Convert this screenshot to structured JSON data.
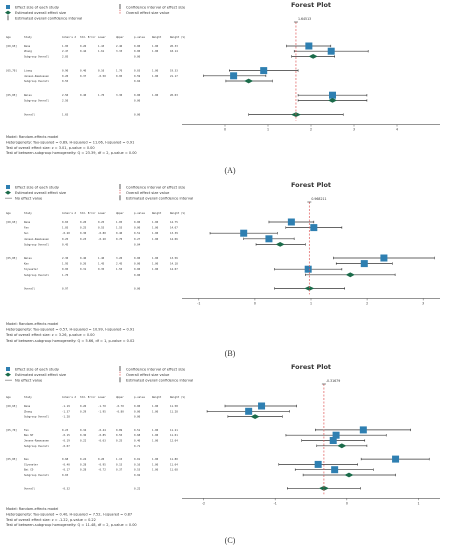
{
  "colors": {
    "box": "#2e7fb1",
    "diamond": "#1b6b4a",
    "ci": "#333333",
    "ref": "#e05a5a",
    "axis": "#555555",
    "text": "#333333"
  },
  "chart_data": [
    {
      "type": "forest",
      "panel_label": "(A)",
      "title": "Forest Plot",
      "ref_value": "1.64513",
      "legend": {
        "effect": "Effect size of each study",
        "overall": "Estimated overall effect size",
        "ci_overall": "Estimated overall confidence interval",
        "ci": "Confidence interval of effect size",
        "overall_value": "Overall effect size value"
      },
      "columns": [
        "Age",
        "Study",
        "Cohen's d",
        "Std. Error",
        "Lower",
        "Upper",
        "p-value",
        "Weight",
        "Weight (%)"
      ],
      "xlim": [
        -1,
        5
      ],
      "ticks": [
        "0",
        "1",
        "2",
        "3",
        "4"
      ],
      "tick_values": [
        0,
        1,
        2,
        3,
        4
      ],
      "rows": [
        {
          "group": "[60,65]",
          "study": "Rana",
          "type": "study",
          "es": 1.95,
          "lo": 1.43,
          "hi": 2.46,
          "cols": [
            "1.95",
            "0.26",
            "1.43",
            "2.46",
            "0.00",
            "1.00",
            "20.33"
          ]
        },
        {
          "group": "",
          "study": "Zhang",
          "type": "study",
          "es": 2.47,
          "lo": 1.61,
          "hi": 3.33,
          "cols": [
            "2.47",
            "0.44",
            "1.61",
            "3.33",
            "0.00",
            "1.00",
            "18.14"
          ]
        },
        {
          "group": "",
          "study": "Subgroup Overall",
          "type": "sub",
          "es": 2.05,
          "lo": 1.55,
          "hi": 2.55,
          "cols": [
            "2.05",
            "",
            "",
            "",
            "0.00",
            "",
            ""
          ]
        },
        {
          "gap": true
        },
        {
          "group": "[65,70]",
          "study": "Liang",
          "type": "study",
          "es": 0.9,
          "lo": 0.1,
          "hi": 1.7,
          "cols": [
            "0.90",
            "0.40",
            "0.10",
            "1.70",
            "0.03",
            "1.00",
            "19.33"
          ]
        },
        {
          "group": "",
          "study": "Jensen-Rasmussen",
          "type": "study",
          "es": 0.2,
          "lo": -0.5,
          "hi": 0.95,
          "cols": [
            "0.20",
            "0.37",
            "-0.50",
            "0.95",
            "0.59",
            "1.00",
            "21.17"
          ]
        },
        {
          "group": "",
          "study": "Subgroup Overall",
          "type": "sub",
          "es": 0.55,
          "lo": 0.02,
          "hi": 1.1,
          "cols": [
            "0.55",
            "",
            "",
            "",
            "0.04",
            "",
            ""
          ]
        },
        {
          "gap": true
        },
        {
          "group": "[65,85]",
          "study": "Weiss",
          "type": "study",
          "es": 2.5,
          "lo": 1.7,
          "hi": 3.3,
          "cols": [
            "2.50",
            "0.40",
            "1.70",
            "3.30",
            "0.00",
            "1.00",
            "20.03"
          ]
        },
        {
          "group": "",
          "study": "Subgroup Overall",
          "type": "sub",
          "es": 2.5,
          "lo": 1.7,
          "hi": 3.3,
          "cols": [
            "2.50",
            "",
            "",
            "",
            "0.00",
            "",
            ""
          ]
        },
        {
          "gap": true
        },
        {
          "group": "",
          "study": "Overall",
          "type": "overall",
          "es": 1.65,
          "lo": 0.55,
          "hi": 2.75,
          "cols": [
            "1.65",
            "",
            "",
            "",
            "0.00",
            "",
            ""
          ]
        }
      ],
      "footer": [
        "Model: Random-effects model",
        "Heterogeneity: Tau-squared = 0.89, H-squared = 11.06, I-squared = 0.91",
        "Test of overall effect size: z = 3.01, p-value = 0.00",
        "Test of between-subgroup homogeneity: Q = 23.39, df = 2, p-value = 0.00"
      ]
    },
    {
      "type": "forest",
      "panel_label": "(B)",
      "title": "Forest Plot",
      "ref_value": "0.968211",
      "legend": {
        "effect": "Effect size of each study",
        "overall": "Estimated overall effect size",
        "ci_overall": "Estimated overall confidence interval",
        "ci": "Confidence interval of effect size",
        "overall_value": "Overall effect size value",
        "noeffect": "No effect value"
      },
      "columns": [
        "Age",
        "Study",
        "Cohen's d",
        "Std. Error",
        "Lower",
        "Upper",
        "p-value",
        "Weight",
        "Weight (%)"
      ],
      "xlim": [
        -1.3,
        3.3
      ],
      "ticks": [
        "-1",
        "0",
        "1",
        "2",
        "3"
      ],
      "tick_values": [
        -1,
        0,
        1,
        2,
        3
      ],
      "rows": [
        {
          "group": "[60,65]",
          "study": "Rana",
          "type": "study",
          "es": 0.65,
          "lo": 0.25,
          "hi": 1.05,
          "cols": [
            "0.65",
            "0.20",
            "0.25",
            "1.05",
            "0.00",
            "1.00",
            "14.75"
          ]
        },
        {
          "group": "",
          "study": "Fan",
          "type": "study",
          "es": 1.05,
          "lo": 0.55,
          "hi": 1.55,
          "cols": [
            "1.05",
            "0.25",
            "0.55",
            "1.55",
            "0.00",
            "1.00",
            "14.07"
          ]
        },
        {
          "group": "",
          "study": "Sui",
          "type": "study",
          "es": -0.2,
          "lo": -0.8,
          "hi": 0.4,
          "cols": [
            "-0.20",
            "0.30",
            "-0.80",
            "0.40",
            "0.51",
            "1.00",
            "13.39"
          ]
        },
        {
          "group": "",
          "study": "Jensen-Rasmussen",
          "type": "study",
          "es": 0.25,
          "lo": -0.2,
          "hi": 0.7,
          "cols": [
            "0.25",
            "0.23",
            "-0.20",
            "0.70",
            "0.27",
            "1.00",
            "14.06"
          ]
        },
        {
          "group": "",
          "study": "Subgroup Overall",
          "type": "sub",
          "es": 0.45,
          "lo": 0.02,
          "hi": 0.9,
          "cols": [
            "0.45",
            "",
            "",
            "",
            "0.04",
            "",
            ""
          ]
        },
        {
          "gap": true
        },
        {
          "group": "[65,85]",
          "study": "Weiss",
          "type": "study",
          "es": 2.3,
          "lo": 1.4,
          "hi": 3.2,
          "cols": [
            "2.30",
            "0.46",
            "1.40",
            "3.20",
            "0.00",
            "1.00",
            "13.56"
          ]
        },
        {
          "group": "",
          "study": "Kao",
          "type": "study",
          "es": 1.95,
          "lo": 1.45,
          "hi": 2.45,
          "cols": [
            "1.95",
            "0.26",
            "1.45",
            "2.45",
            "0.00",
            "1.00",
            "14.18"
          ]
        },
        {
          "group": "",
          "study": "Slyvester",
          "type": "study",
          "es": 0.95,
          "lo": 0.35,
          "hi": 1.55,
          "cols": [
            "0.95",
            "0.31",
            "0.35",
            "1.55",
            "0.00",
            "1.00",
            "14.07"
          ]
        },
        {
          "group": "",
          "study": "Subgroup Overall",
          "type": "sub",
          "es": 1.7,
          "lo": 0.9,
          "hi": 2.5,
          "cols": [
            "1.70",
            "",
            "",
            "",
            "0.00",
            "",
            ""
          ]
        },
        {
          "gap": true
        },
        {
          "group": "",
          "study": "Overall",
          "type": "overall",
          "es": 0.97,
          "lo": 0.35,
          "hi": 1.6,
          "cols": [
            "0.97",
            "",
            "",
            "",
            "0.00",
            "",
            ""
          ]
        }
      ],
      "footer": [
        "Model: Random-effects model",
        "Heterogeneity: Tau-squared = 0.57, H-squared = 10.99, I-squared = 0.91",
        "Test of overall effect size: z = 3.26, p-value = 0.00",
        "Test of between-subgroup homogeneity: Q = 5.66, df = 1, p-value = 0.02"
      ]
    },
    {
      "type": "forest",
      "panel_label": "(C)",
      "title": "Forest Plot",
      "ref_value": "-0.31679",
      "legend": {
        "effect": "Effect size of each study",
        "overall": "Estimated overall effect size",
        "noeffect": "No effect value",
        "ci": "Confidence interval of effect size",
        "overall_value": "Overall effect size value",
        "ci_overall": "Estimated overall confidence interval"
      },
      "columns": [
        "Age",
        "Study",
        "Cohen's d",
        "Std. Error",
        "Lower",
        "Upper",
        "p-value",
        "Weight",
        "Weight (%)"
      ],
      "xlim": [
        -2.3,
        1.3
      ],
      "ticks": [
        "-2",
        "-1",
        "0",
        "1"
      ],
      "tick_values": [
        -2,
        -1,
        0,
        1
      ],
      "rows": [
        {
          "group": "[60,65]",
          "study": "Rana",
          "type": "study",
          "es": -1.19,
          "lo": -1.7,
          "hi": -0.7,
          "cols": [
            "-1.19",
            "0.26",
            "-1.70",
            "-0.70",
            "0.00",
            "1.00",
            "11.58"
          ]
        },
        {
          "group": "",
          "study": "Zhang",
          "type": "study",
          "es": -1.37,
          "lo": -1.95,
          "hi": -0.8,
          "cols": [
            "-1.37",
            "0.29",
            "-1.95",
            "-0.80",
            "0.00",
            "1.00",
            "11.28"
          ]
        },
        {
          "group": "",
          "study": "Subgroup Overall",
          "type": "sub",
          "es": -1.28,
          "lo": -1.66,
          "hi": -0.9,
          "cols": [
            "-1.28",
            "",
            "",
            "",
            "0.00",
            "",
            ""
          ]
        },
        {
          "gap": true
        },
        {
          "group": "[65,70]",
          "study": "Fan",
          "type": "study",
          "es": 0.23,
          "lo": -0.44,
          "hi": 0.89,
          "cols": [
            "0.23",
            "0.34",
            "-0.44",
            "0.89",
            "0.51",
            "1.00",
            "11.21"
          ]
        },
        {
          "group": "",
          "study": "Bao NT",
          "type": "study",
          "es": -0.15,
          "lo": -0.85,
          "hi": 0.55,
          "cols": [
            "-0.15",
            "0.36",
            "-0.85",
            "0.55",
            "0.68",
            "1.00",
            "11.01"
          ]
        },
        {
          "group": "",
          "study": "Jensen-Rasmussen",
          "type": "study",
          "es": -0.19,
          "lo": -0.63,
          "hi": 0.25,
          "cols": [
            "-0.19",
            "0.22",
            "-0.63",
            "0.25",
            "0.40",
            "1.00",
            "12.04"
          ]
        },
        {
          "group": "",
          "study": "Subgroup Overall",
          "type": "sub",
          "es": -0.07,
          "lo": -0.42,
          "hi": 0.28,
          "cols": [
            "-0.07",
            "",
            "",
            "",
            "0.71",
            "",
            ""
          ]
        },
        {
          "gap": true
        },
        {
          "group": "[65,85]",
          "study": "Kao",
          "type": "study",
          "es": 0.68,
          "lo": 0.2,
          "hi": 1.15,
          "cols": [
            "0.68",
            "0.24",
            "0.20",
            "1.15",
            "0.01",
            "1.00",
            "11.80"
          ]
        },
        {
          "group": "",
          "study": "Slyvester",
          "type": "study",
          "es": -0.4,
          "lo": -0.95,
          "hi": 0.15,
          "cols": [
            "-0.40",
            "0.28",
            "-0.95",
            "0.15",
            "0.16",
            "1.00",
            "11.64"
          ]
        },
        {
          "group": "",
          "study": "Bai CD",
          "type": "study",
          "es": -0.17,
          "lo": -0.72,
          "hi": 0.37,
          "cols": [
            "-0.17",
            "0.28",
            "-0.72",
            "0.37",
            "0.53",
            "1.00",
            "11.68"
          ]
        },
        {
          "group": "",
          "study": "Subgroup Overall",
          "type": "sub",
          "es": 0.03,
          "lo": -0.61,
          "hi": 0.68,
          "cols": [
            "0.03",
            "",
            "",
            "",
            "0.92",
            "",
            ""
          ]
        },
        {
          "gap": true
        },
        {
          "group": "",
          "study": "Overall",
          "type": "overall",
          "es": -0.32,
          "lo": -0.83,
          "hi": 0.19,
          "cols": [
            "-0.32",
            "",
            "",
            "",
            "0.22",
            "",
            ""
          ]
        }
      ],
      "footer": [
        "Model: Random-effects model",
        "Heterogeneity: Tau-squared = 0.40, H-squared = 7.52, I-squared = 0.87",
        "Test of overall effect size: z = -1.22, p-value = 0.22",
        "Test of between-subgroup homogeneity: Q = 11.48, df = 2, p-value = 0.00"
      ]
    }
  ]
}
